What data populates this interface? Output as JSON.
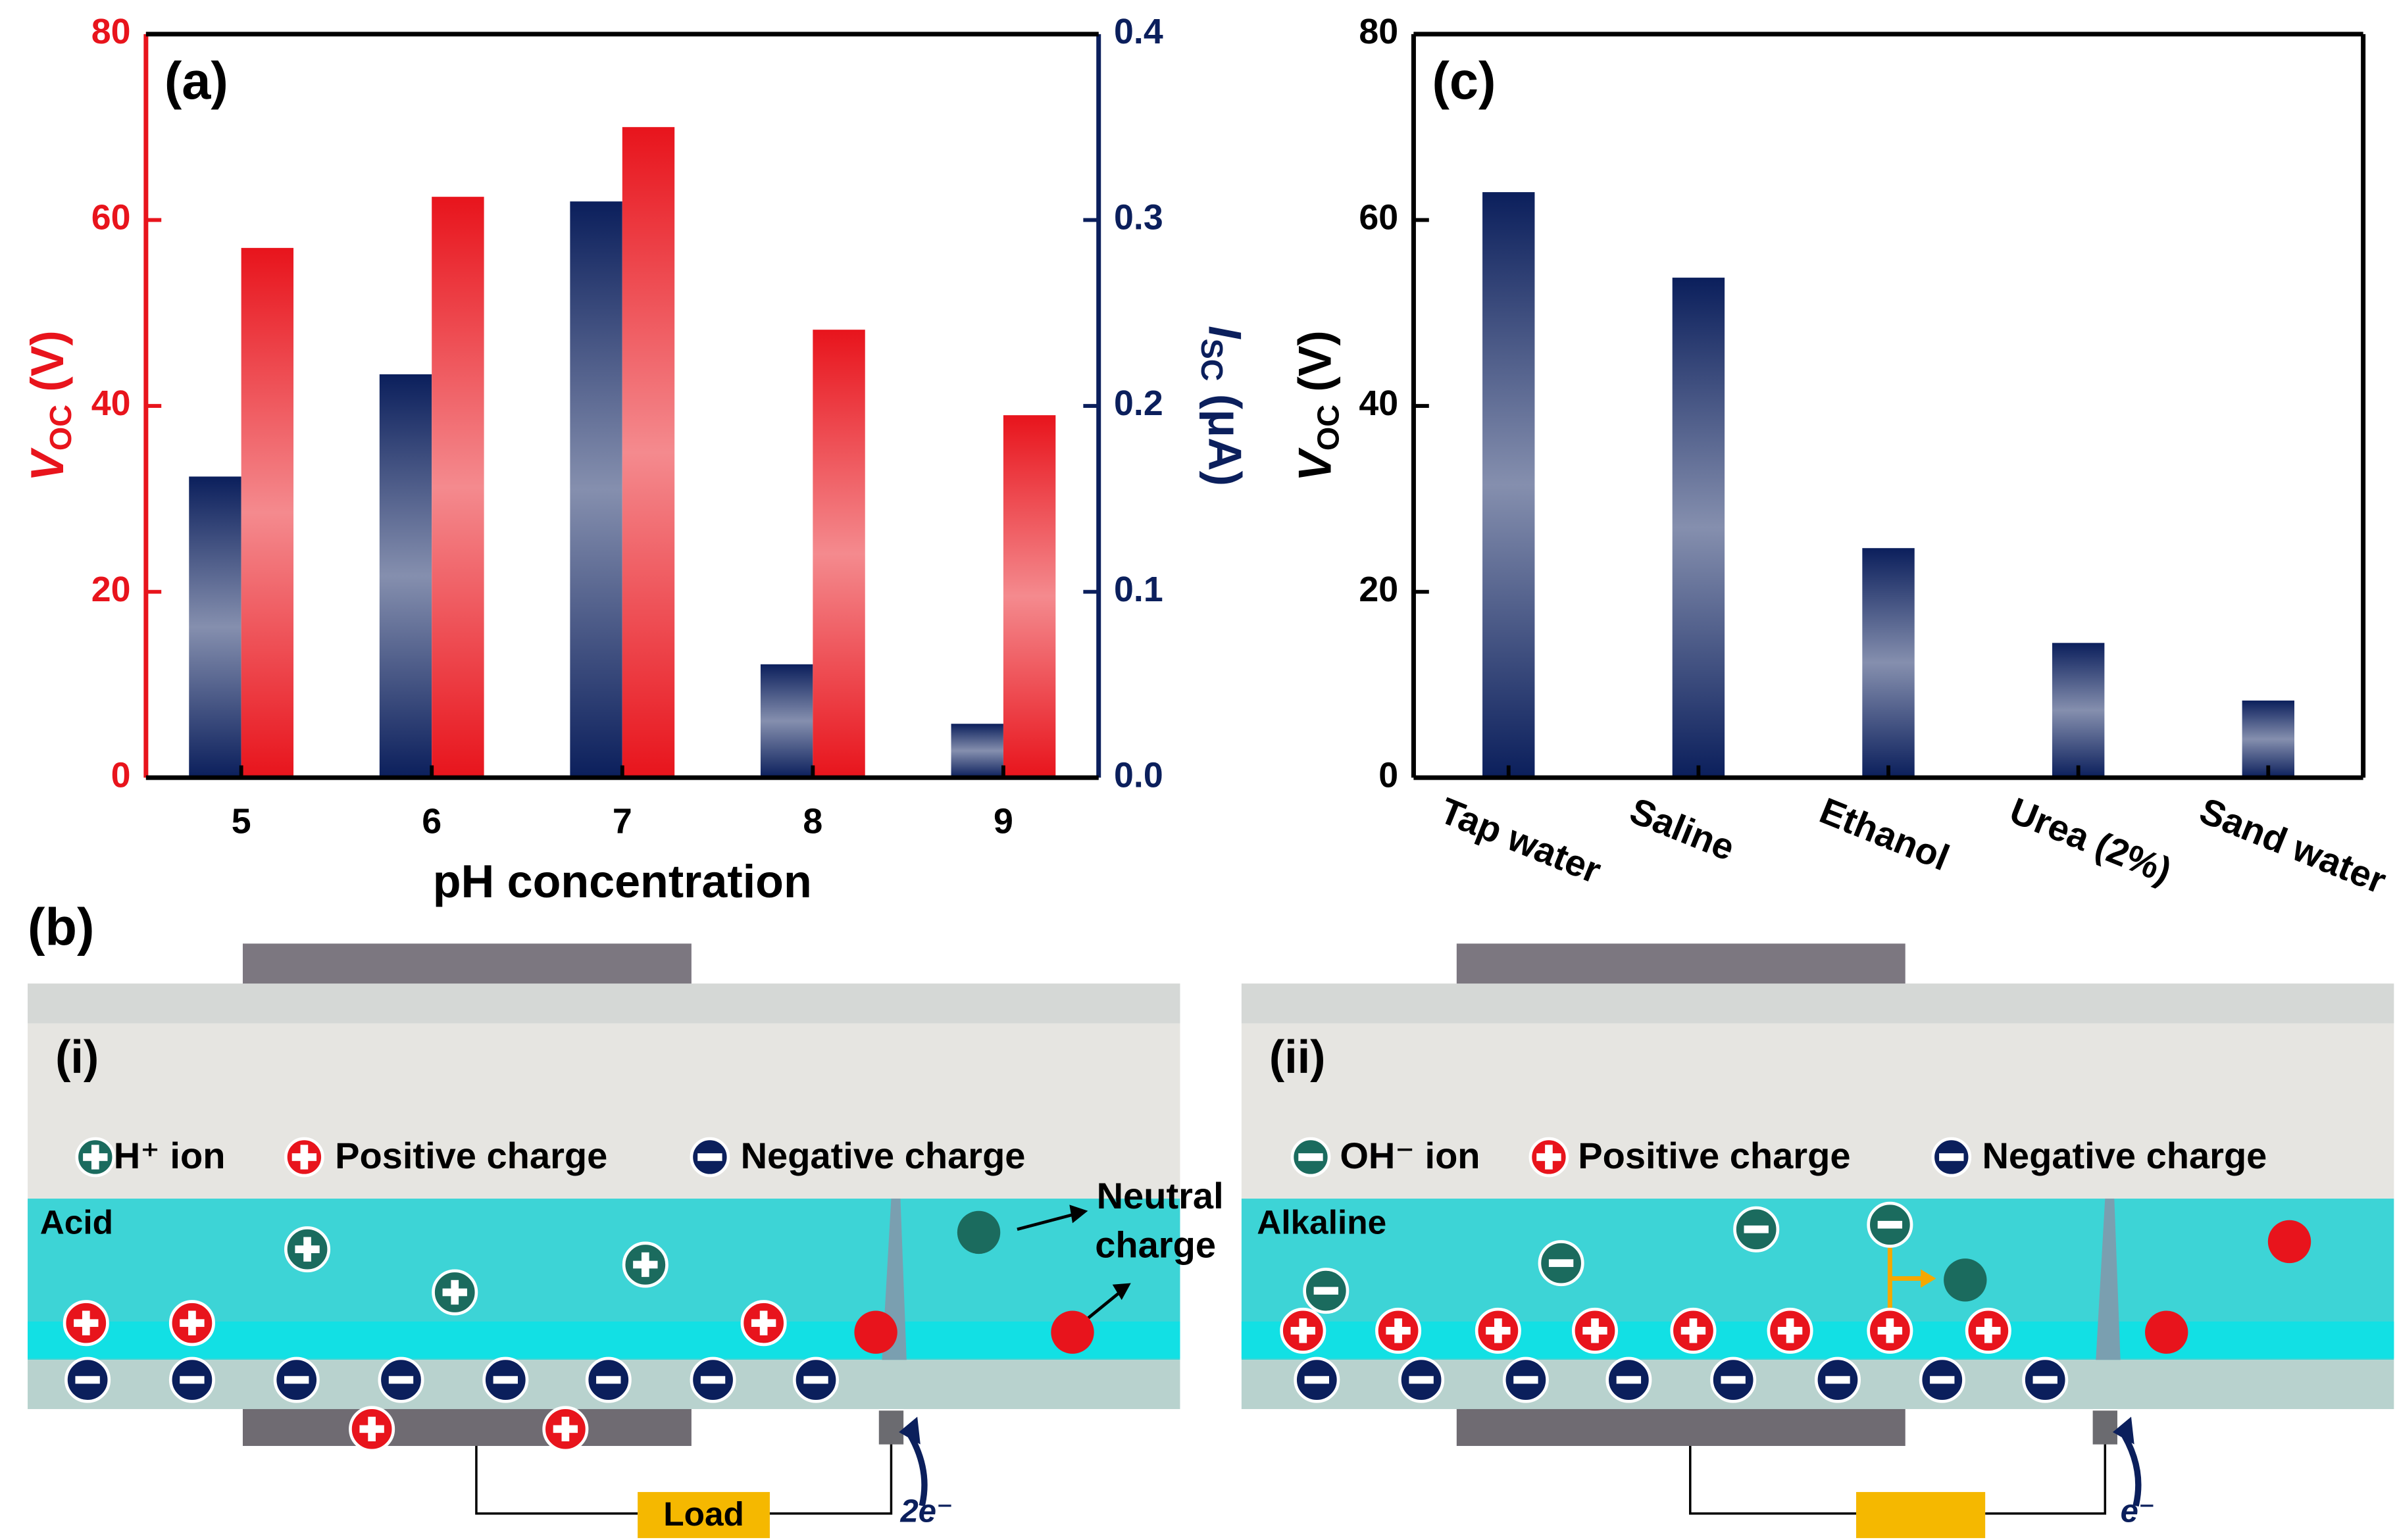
{
  "chart_data": [
    {
      "type": "bar",
      "panel": "(a)",
      "categories": [
        "5",
        "6",
        "7",
        "8",
        "9"
      ],
      "xlabel": "pH concentration",
      "ylabel": [
        "V",
        "OC",
        " (V)"
      ],
      "y2label": [
        "I",
        "SC",
        " (μA)"
      ],
      "ycolor": "#e8141c",
      "y2color": "#0b1f5c",
      "series": [
        {
          "color": "#0b1f5c",
          "axis": "y2",
          "values": [
            0.162,
            0.217,
            0.31,
            0.061,
            0.029
          ]
        },
        {
          "color": "#e8141c",
          "values": [
            57,
            62.5,
            70,
            48.2,
            39
          ]
        }
      ],
      "ylim": [
        0,
        80
      ],
      "yticks": [
        0,
        20,
        40,
        60,
        80
      ],
      "y2lim": [
        0,
        0.4
      ],
      "y2ticks": [
        {
          "value": 0,
          "label": "0.0"
        },
        0.1,
        0.2,
        0.3,
        0.4
      ]
    },
    {
      "type": "bar",
      "panel": "(c)",
      "categories": [
        "Tap water",
        "Saline",
        "Ethanol",
        "Urea (2%)",
        "Sand water"
      ],
      "ylabel": [
        "V",
        "OC",
        " (V)"
      ],
      "ycolor": "#000000",
      "series": [
        {
          "color": "#0b1f5c",
          "values": [
            63,
            53.8,
            24.7,
            14.5,
            8.3
          ]
        }
      ],
      "ylim": [
        0,
        80
      ],
      "yticks": [
        0,
        20,
        40,
        60,
        80
      ]
    }
  ],
  "diagram": {
    "label": "(b)",
    "panels": [
      {
        "label": "(i)",
        "legend": [
          "H⁺ ion",
          "Positive charge",
          "Negative charge"
        ],
        "medium": "Acid",
        "neutral": [
          "Neutral",
          "charge"
        ],
        "load": "Load",
        "electrons": "2e⁻"
      },
      {
        "label": "(ii)",
        "legend": [
          "OH⁻ ion",
          "Positive charge",
          "Negative charge"
        ],
        "medium": "Alkaline",
        "electrons": "e⁻"
      }
    ]
  }
}
